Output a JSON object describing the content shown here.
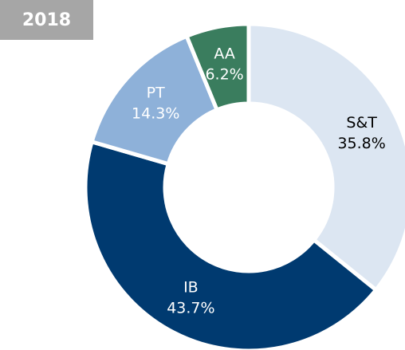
{
  "chart_data": {
    "type": "pie",
    "title": "2018",
    "categories": [
      "S&T",
      "IB",
      "PT",
      "AA"
    ],
    "values": [
      35.8,
      43.7,
      14.3,
      6.2
    ],
    "value_labels": [
      "35.8%",
      "43.7%",
      "14.3%",
      "6.2%"
    ],
    "colors": [
      "#dce6f2",
      "#003a70",
      "#8eb1d9",
      "#3a7d5e"
    ]
  }
}
